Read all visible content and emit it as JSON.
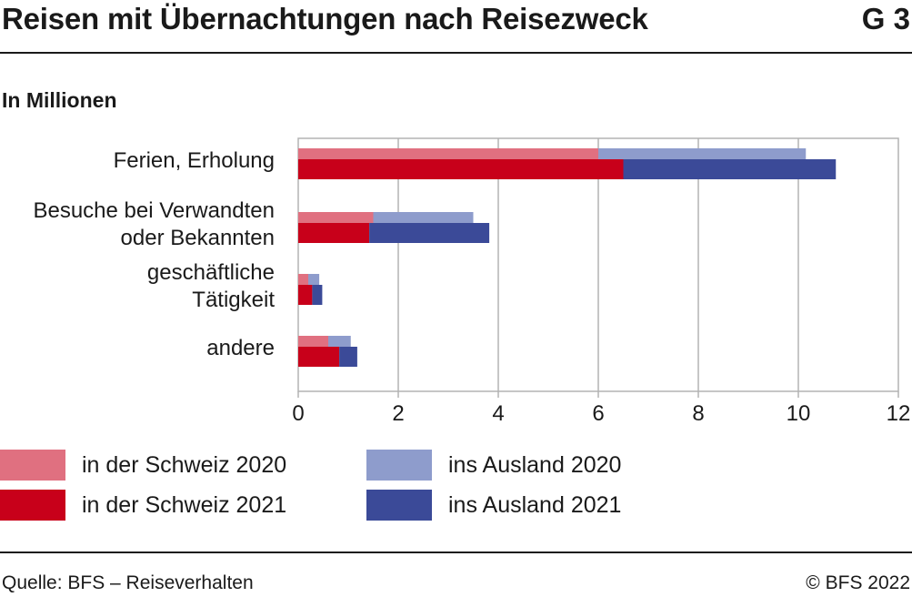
{
  "header": {
    "title": "Reisen mit Übernachtungen nach Reisezweck",
    "figure_id": "G 3"
  },
  "subtitle": "In Millionen",
  "footer": {
    "source": "Quelle: BFS – Reiseverhalten",
    "copyright": "© BFS 2022"
  },
  "colors": {
    "ch_2020": "#e07080",
    "ch_2021": "#c8001a",
    "abroad_2020": "#8e9ccc",
    "abroad_2021": "#3b4a98",
    "grid": "#b3b3b3",
    "axis": "#b3b3b3"
  },
  "legend": [
    {
      "label": "in der Schweiz 2020",
      "color": "#e07080"
    },
    {
      "label": "ins Ausland 2020",
      "color": "#8e9ccc"
    },
    {
      "label": "in der Schweiz 2021",
      "color": "#c8001a"
    },
    {
      "label": "ins Ausland 2021",
      "color": "#3b4a98"
    }
  ],
  "chart_data": {
    "type": "bar",
    "orientation": "horizontal",
    "stacked": true,
    "title": "Reisen mit Übernachtungen nach Reisezweck",
    "subtitle": "In Millionen",
    "categories": [
      [
        "Ferien, Erholung"
      ],
      [
        "Besuche bei Verwandten",
        "oder Bekannten"
      ],
      [
        "geschäftliche",
        "Tätigkeit"
      ],
      [
        "andere"
      ]
    ],
    "groups": [
      {
        "year": "2020",
        "series": [
          {
            "name": "in der Schweiz 2020",
            "values": [
              6.0,
              1.5,
              0.2,
              0.6
            ]
          },
          {
            "name": "ins Ausland 2020",
            "values": [
              4.15,
              2.0,
              0.22,
              0.45
            ]
          }
        ]
      },
      {
        "year": "2021",
        "series": [
          {
            "name": "in der Schweiz 2021",
            "values": [
              6.5,
              1.42,
              0.28,
              0.82
            ]
          },
          {
            "name": "ins Ausland 2021",
            "values": [
              4.25,
              2.4,
              0.2,
              0.36
            ]
          }
        ]
      }
    ],
    "xlim": [
      0,
      12
    ],
    "xticks": [
      0,
      2,
      4,
      6,
      8,
      10,
      12
    ],
    "grid": true,
    "legend_position": "bottom"
  }
}
